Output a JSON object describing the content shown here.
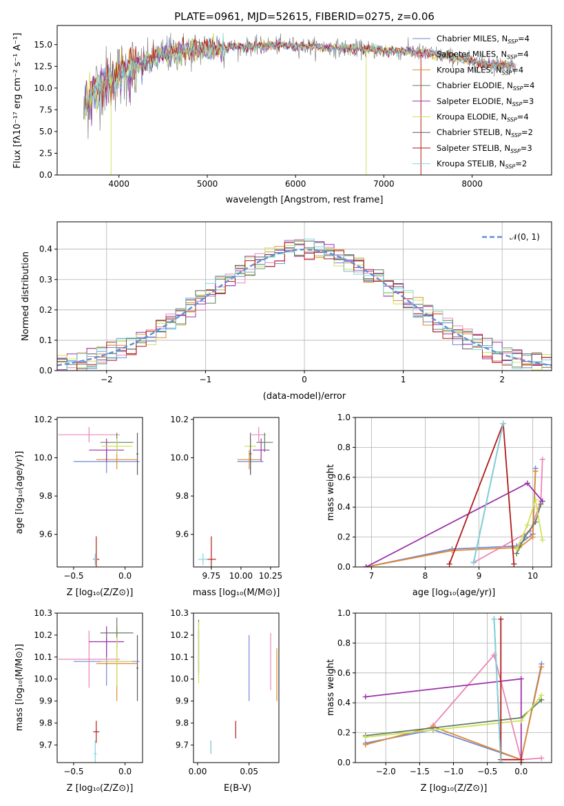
{
  "figure": {
    "title": "PLATE=0961, MJD=52615, FIBERID=0275, z=0.06",
    "models": [
      {
        "name": "Chabrier MILES",
        "nssp": "4",
        "color": "#6f86d6"
      },
      {
        "name": "Salpeter MILES",
        "nssp": "4",
        "color": "#ea84b6"
      },
      {
        "name": "Kroupa MILES",
        "nssp": "4",
        "color": "#e08a2e"
      },
      {
        "name": "Chabrier ELODIE",
        "nssp": "4",
        "color": "#5f7f5f"
      },
      {
        "name": "Salpeter ELODIE",
        "nssp": "3",
        "color": "#9b30a8"
      },
      {
        "name": "Kroupa ELODIE",
        "nssp": "4",
        "color": "#cfe05a"
      },
      {
        "name": "Chabrier STELIB",
        "nssp": "2",
        "color": "#5a5a5a"
      },
      {
        "name": "Salpeter STELIB",
        "nssp": "3",
        "color": "#b01818"
      },
      {
        "name": "Kroupa STELIB",
        "nssp": "2",
        "color": "#7fd4dc"
      }
    ]
  },
  "chart_data": [
    {
      "id": "spectrum",
      "type": "line",
      "xlabel": "wavelength [Angstrom, rest frame]",
      "ylabel": "Flux [fλ10⁻¹⁷ erg cm⁻² s⁻¹ A⁻¹]",
      "xlim": [
        3300,
        8900
      ],
      "ylim": [
        0,
        17.2
      ],
      "xticks": [
        4000,
        5000,
        6000,
        7000,
        8000
      ],
      "yticks": [
        0.0,
        2.5,
        5.0,
        7.5,
        10.0,
        12.5,
        15.0
      ],
      "legend": "top-right",
      "data_envelope": {
        "x": [
          3600,
          3700,
          3800,
          3900,
          4000,
          4100,
          4200,
          4300,
          4400,
          4500,
          4700,
          4900,
          5100,
          5300,
          5500,
          5700,
          5900,
          6100,
          6300,
          6500,
          6700,
          6900,
          7100,
          7300,
          7500,
          7700,
          7900,
          8100,
          8300,
          8500
        ],
        "y": [
          7.0,
          9.5,
          10.5,
          11.0,
          11.5,
          12.0,
          12.5,
          13.0,
          13.3,
          13.8,
          14.2,
          14.5,
          14.6,
          14.7,
          14.8,
          14.9,
          14.9,
          14.8,
          14.7,
          14.6,
          14.5,
          14.4,
          14.3,
          14.2,
          14.0,
          13.7,
          13.3,
          12.9,
          12.7,
          12.5
        ]
      }
    },
    {
      "id": "residuals",
      "type": "line",
      "xlabel": "(data-model)/error",
      "ylabel": "Normed distribution",
      "xlim": [
        -2.5,
        2.5
      ],
      "ylim": [
        0,
        0.49
      ],
      "xticks": [
        -2,
        -1,
        0,
        1,
        2
      ],
      "yticks": [
        0.0,
        0.1,
        0.2,
        0.3,
        0.4
      ],
      "grid": true,
      "legend": "top-right",
      "legend_label": "𝒩(0, 1)",
      "gaussian": {
        "mu": 0,
        "sigma": 1
      },
      "histogram_bin_width": 0.1
    },
    {
      "id": "age-vs-Z",
      "type": "scatter",
      "xlabel": "Z [log₁₀(Z/Z⊙)]",
      "ylabel": "age  [log₁₀(age/yr)]",
      "xlim": [
        -0.66,
        0.17
      ],
      "ylim": [
        9.43,
        10.21
      ],
      "xticks": [
        -0.5,
        0.0
      ],
      "yticks": [
        9.6,
        9.8,
        10.0,
        10.2
      ],
      "points": [
        {
          "x": -0.18,
          "y": 9.98,
          "xerr": 0.32,
          "yerr": 0.06,
          "model": 0
        },
        {
          "x": -0.35,
          "y": 10.12,
          "xerr": 0.3,
          "yerr": 0.04,
          "model": 1
        },
        {
          "x": -0.08,
          "y": 9.99,
          "xerr": 0.2,
          "yerr": 0.05,
          "model": 2
        },
        {
          "x": -0.08,
          "y": 10.08,
          "xerr": 0.16,
          "yerr": 0.05,
          "model": 3
        },
        {
          "x": -0.18,
          "y": 10.04,
          "xerr": 0.17,
          "yerr": 0.06,
          "model": 4
        },
        {
          "x": -0.08,
          "y": 10.06,
          "xerr": 0.15,
          "yerr": 0.04,
          "model": 5
        },
        {
          "x": 0.12,
          "y": 10.02,
          "xerr": 0.01,
          "yerr": 0.11,
          "model": 6
        },
        {
          "x": -0.28,
          "y": 9.47,
          "xerr": 0.03,
          "yerr": 0.12,
          "model": 7
        },
        {
          "x": -0.29,
          "y": 9.47,
          "xerr": 0.015,
          "yerr": 0.03,
          "model": 8
        }
      ]
    },
    {
      "id": "age-vs-mass",
      "type": "scatter",
      "xlabel": "mass [log₁₀(M/M⊙)]",
      "ylabel": "",
      "xlim": [
        9.6,
        10.32
      ],
      "ylim": [
        9.43,
        10.21
      ],
      "xticks": [
        9.75,
        10.0,
        10.25
      ],
      "yticks": [
        9.6,
        9.8,
        10.0,
        10.2
      ],
      "points": [
        {
          "x": 10.08,
          "y": 9.98,
          "xerr": 0.11,
          "yerr": 0.06,
          "model": 0
        },
        {
          "x": 10.15,
          "y": 10.12,
          "xerr": 0.06,
          "yerr": 0.04,
          "model": 1
        },
        {
          "x": 10.07,
          "y": 9.99,
          "xerr": 0.1,
          "yerr": 0.05,
          "model": 2
        },
        {
          "x": 10.2,
          "y": 10.08,
          "xerr": 0.07,
          "yerr": 0.05,
          "model": 3
        },
        {
          "x": 10.17,
          "y": 10.04,
          "xerr": 0.07,
          "yerr": 0.06,
          "model": 4
        },
        {
          "x": 10.08,
          "y": 10.06,
          "xerr": 0.05,
          "yerr": 0.04,
          "model": 5
        },
        {
          "x": 10.08,
          "y": 10.02,
          "xerr": 0.01,
          "yerr": 0.11,
          "model": 6
        },
        {
          "x": 9.75,
          "y": 9.47,
          "xerr": 0.04,
          "yerr": 0.12,
          "model": 7
        },
        {
          "x": 9.68,
          "y": 9.47,
          "xerr": 0.04,
          "yerr": 0.03,
          "model": 8
        }
      ]
    },
    {
      "id": "mass-weight-vs-age",
      "type": "line",
      "xlabel": "age  [log₁₀(age/yr)]",
      "ylabel": "mass weight",
      "xlim": [
        6.7,
        10.35
      ],
      "ylim": [
        0,
        1.0
      ],
      "xticks": [
        7,
        8,
        9,
        10
      ],
      "yticks": [
        0.0,
        0.2,
        0.4,
        0.6,
        0.8,
        1.0
      ],
      "grid": true,
      "series": [
        {
          "model": 0,
          "x": [
            6.9,
            8.5,
            9.7,
            10.0,
            10.05
          ],
          "y": [
            0.0,
            0.12,
            0.14,
            0.22,
            0.66
          ]
        },
        {
          "model": 1,
          "x": [
            8.9,
            9.95,
            10.15,
            10.18
          ],
          "y": [
            0.03,
            0.24,
            0.44,
            0.72
          ]
        },
        {
          "model": 2,
          "x": [
            6.9,
            8.5,
            9.75,
            10.0,
            10.05
          ],
          "y": [
            0.0,
            0.11,
            0.13,
            0.2,
            0.64
          ]
        },
        {
          "model": 3,
          "x": [
            9.7,
            9.85,
            10.05,
            10.15
          ],
          "y": [
            0.09,
            0.2,
            0.3,
            0.42
          ]
        },
        {
          "model": 4,
          "x": [
            6.9,
            9.9,
            10.18
          ],
          "y": [
            0.0,
            0.56,
            0.44
          ]
        },
        {
          "model": 5,
          "x": [
            9.7,
            9.9,
            10.05,
            10.18
          ],
          "y": [
            0.12,
            0.28,
            0.45,
            0.18
          ]
        },
        {
          "model": 6,
          "x": [
            8.9,
            9.45
          ],
          "y": [
            0.03,
            0.96
          ]
        },
        {
          "model": 7,
          "x": [
            8.45,
            9.45,
            9.65
          ],
          "y": [
            0.02,
            0.96,
            0.02
          ]
        },
        {
          "model": 8,
          "x": [
            8.9,
            9.45
          ],
          "y": [
            0.03,
            0.96
          ]
        }
      ]
    },
    {
      "id": "mass-vs-Z",
      "type": "scatter",
      "xlabel": "Z [log₁₀(Z/Z⊙)]",
      "ylabel": "mass [log₁₀(M/M⊙)]",
      "xlim": [
        -0.66,
        0.17
      ],
      "ylim": [
        9.62,
        10.3
      ],
      "xticks": [
        -0.5,
        0.0
      ],
      "yticks": [
        9.7,
        9.8,
        9.9,
        10.0,
        10.1,
        10.2,
        10.3
      ],
      "points": [
        {
          "x": -0.18,
          "y": 10.08,
          "xerr": 0.32,
          "yerr": 0.11,
          "model": 0
        },
        {
          "x": -0.35,
          "y": 10.09,
          "xerr": 0.3,
          "yerr": 0.13,
          "model": 1
        },
        {
          "x": -0.08,
          "y": 10.07,
          "xerr": 0.2,
          "yerr": 0.17,
          "model": 2
        },
        {
          "x": -0.08,
          "y": 10.21,
          "xerr": 0.16,
          "yerr": 0.07,
          "model": 3
        },
        {
          "x": -0.18,
          "y": 10.17,
          "xerr": 0.17,
          "yerr": 0.07,
          "model": 4
        },
        {
          "x": -0.08,
          "y": 10.08,
          "xerr": 0.15,
          "yerr": 0.11,
          "model": 5
        },
        {
          "x": 0.12,
          "y": 10.05,
          "xerr": 0.01,
          "yerr": 0.15,
          "model": 6
        },
        {
          "x": -0.28,
          "y": 9.76,
          "xerr": 0.03,
          "yerr": 0.05,
          "model": 7
        },
        {
          "x": -0.29,
          "y": 9.66,
          "xerr": 0.015,
          "yerr": 0.06,
          "model": 8
        }
      ]
    },
    {
      "id": "mass-vs-ebv",
      "type": "scatter",
      "xlabel": "E(B-V)",
      "ylabel": "",
      "xlim": [
        -0.004,
        0.079
      ],
      "ylim": [
        9.62,
        10.3
      ],
      "xticks": [
        0.0,
        0.05
      ],
      "yticks": [
        9.7,
        9.8,
        9.9,
        10.0,
        10.1,
        10.2,
        10.3
      ],
      "points": [
        {
          "x": 0.05,
          "y": 10.05,
          "xerr": 0.0,
          "yerr": 0.15,
          "model": 0
        },
        {
          "x": 0.071,
          "y": 10.08,
          "xerr": 0.0,
          "yerr": 0.13,
          "model": 1
        },
        {
          "x": 0.077,
          "y": 10.02,
          "xerr": 0.0,
          "yerr": 0.12,
          "model": 2
        },
        {
          "x": 0.001,
          "y": 10.15,
          "xerr": 0.0,
          "yerr": 0.12,
          "model": 3
        },
        {
          "x": 0.001,
          "y": 10.12,
          "xerr": 0.0,
          "yerr": 0.1,
          "model": 4
        },
        {
          "x": 0.001,
          "y": 10.12,
          "xerr": 0.0,
          "yerr": 0.14,
          "model": 5
        },
        {
          "x": 0.013,
          "y": 9.69,
          "xerr": 0.0,
          "yerr": 0.03,
          "model": 6
        },
        {
          "x": 0.037,
          "y": 9.77,
          "xerr": 0.0,
          "yerr": 0.04,
          "model": 7
        },
        {
          "x": 0.013,
          "y": 9.69,
          "xerr": 0.0,
          "yerr": 0.03,
          "model": 8
        }
      ]
    },
    {
      "id": "mass-weight-vs-Z",
      "type": "line",
      "xlabel": "Z [log₁₀(Z/Z⊙)]",
      "ylabel": "mass weight",
      "xlim": [
        -2.45,
        0.45
      ],
      "ylim": [
        0,
        1.0
      ],
      "xticks": [
        -2.0,
        -1.5,
        -1.0,
        -0.5,
        0.0
      ],
      "yticks": [
        0.0,
        0.2,
        0.4,
        0.6,
        0.8,
        1.0
      ],
      "grid": true,
      "series": [
        {
          "model": 0,
          "x": [
            -2.3,
            -1.3,
            0.0,
            0.3
          ],
          "y": [
            0.13,
            0.22,
            0.02,
            0.66
          ]
        },
        {
          "model": 1,
          "x": [
            -1.3,
            -0.4,
            0.0,
            0.3
          ],
          "y": [
            0.25,
            0.72,
            0.02,
            0.03
          ]
        },
        {
          "model": 2,
          "x": [
            -2.3,
            -1.3,
            0.0,
            0.3
          ],
          "y": [
            0.12,
            0.24,
            0.02,
            0.64
          ]
        },
        {
          "model": 3,
          "x": [
            -2.3,
            0.0,
            0.3
          ],
          "y": [
            0.18,
            0.3,
            0.42
          ]
        },
        {
          "model": 4,
          "x": [
            -2.3,
            0.0,
            0.0
          ],
          "y": [
            0.44,
            0.56,
            0.0
          ]
        },
        {
          "model": 5,
          "x": [
            -2.3,
            0.0,
            0.3
          ],
          "y": [
            0.17,
            0.28,
            0.45
          ]
        },
        {
          "model": 6,
          "x": [
            -0.4,
            -0.3
          ],
          "y": [
            0.96,
            0.0
          ]
        },
        {
          "model": 7,
          "x": [
            -0.3,
            -0.3,
            0.0
          ],
          "y": [
            0.96,
            0.02,
            0.02
          ]
        },
        {
          "model": 8,
          "x": [
            -0.4,
            -0.3
          ],
          "y": [
            0.96,
            0.0
          ]
        }
      ]
    }
  ]
}
